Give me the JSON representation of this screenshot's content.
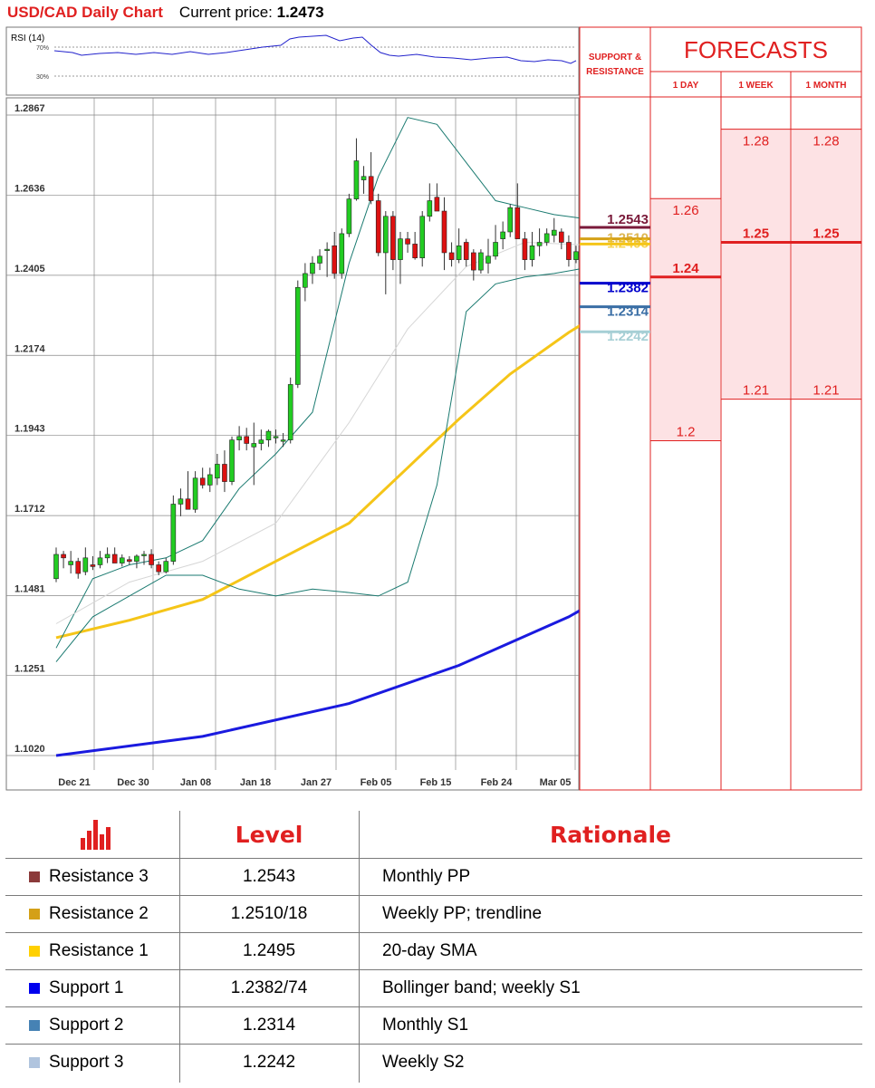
{
  "header": {
    "title": "USD/CAD Daily Chart",
    "price_label": "Current price: ",
    "price_value": "1.2473"
  },
  "rsi": {
    "label": "RSI (14)",
    "levels": [
      "70%",
      "30%"
    ]
  },
  "chart_data": {
    "type": "candlestick",
    "title": "USD/CAD Daily Chart",
    "y_ticks": [
      "1.2867",
      "1.2636",
      "1.2405",
      "1.2174",
      "1.1943",
      "1.1712",
      "1.1481",
      "1.1251",
      "1.1020"
    ],
    "ylim": [
      1.102,
      1.2867
    ],
    "x_ticks": [
      "Dec 21",
      "Dec 30",
      "Jan 08",
      "Jan 18",
      "Jan 27",
      "Feb 05",
      "Feb 15",
      "Feb 24",
      "Mar 05"
    ],
    "grid": true,
    "candles": [
      [
        1.153,
        1.162,
        1.152,
        1.16
      ],
      [
        1.16,
        1.161,
        1.156,
        1.159
      ],
      [
        1.157,
        1.161,
        1.1545,
        1.158
      ],
      [
        1.158,
        1.159,
        1.153,
        1.1545
      ],
      [
        1.155,
        1.162,
        1.154,
        1.159
      ],
      [
        1.157,
        1.1595,
        1.1555,
        1.1565
      ],
      [
        1.157,
        1.161,
        1.156,
        1.159
      ],
      [
        1.159,
        1.162,
        1.1575,
        1.16
      ],
      [
        1.16,
        1.162,
        1.158,
        1.1575
      ],
      [
        1.1575,
        1.16,
        1.1565,
        1.159
      ],
      [
        1.1585,
        1.1595,
        1.157,
        1.158
      ],
      [
        1.158,
        1.16,
        1.156,
        1.1595
      ],
      [
        1.16,
        1.161,
        1.157,
        1.16
      ],
      [
        1.16,
        1.1615,
        1.156,
        1.157
      ],
      [
        1.157,
        1.158,
        1.154,
        1.155
      ],
      [
        1.155,
        1.159,
        1.1545,
        1.158
      ],
      [
        1.158,
        1.177,
        1.157,
        1.1745
      ],
      [
        1.1745,
        1.179,
        1.171,
        1.176
      ],
      [
        1.176,
        1.184,
        1.174,
        1.173
      ],
      [
        1.173,
        1.184,
        1.172,
        1.182
      ],
      [
        1.182,
        1.185,
        1.179,
        1.18
      ],
      [
        1.18,
        1.185,
        1.178,
        1.183
      ],
      [
        1.182,
        1.189,
        1.18,
        1.186
      ],
      [
        1.186,
        1.19,
        1.178,
        1.181
      ],
      [
        1.181,
        1.194,
        1.18,
        1.193
      ],
      [
        1.193,
        1.197,
        1.19,
        1.194
      ],
      [
        1.194,
        1.1965,
        1.19,
        1.192
      ],
      [
        1.191,
        1.198,
        1.18,
        1.192
      ],
      [
        1.192,
        1.196,
        1.19,
        1.193
      ],
      [
        1.193,
        1.196,
        1.191,
        1.1955
      ],
      [
        1.194,
        1.196,
        1.192,
        1.194
      ],
      [
        1.193,
        1.195,
        1.191,
        1.193
      ],
      [
        1.193,
        1.211,
        1.192,
        1.209
      ],
      [
        1.209,
        1.239,
        1.208,
        1.237
      ],
      [
        1.237,
        1.244,
        1.233,
        1.241
      ],
      [
        1.241,
        1.246,
        1.238,
        1.244
      ],
      [
        1.244,
        1.248,
        1.242,
        1.246
      ],
      [
        1.248,
        1.25,
        1.24,
        1.248
      ],
      [
        1.249,
        1.253,
        1.2395,
        1.241
      ],
      [
        1.241,
        1.254,
        1.2395,
        1.2525
      ],
      [
        1.2525,
        1.264,
        1.2515,
        1.2625
      ],
      [
        1.2625,
        1.28,
        1.262,
        1.2735
      ],
      [
        1.268,
        1.272,
        1.264,
        1.269
      ],
      [
        1.269,
        1.276,
        1.261,
        1.262
      ],
      [
        1.262,
        1.264,
        1.246,
        1.247
      ],
      [
        1.247,
        1.259,
        1.235,
        1.2575
      ],
      [
        1.2575,
        1.259,
        1.242,
        1.245
      ],
      [
        1.245,
        1.253,
        1.238,
        1.251
      ],
      [
        1.251,
        1.253,
        1.247,
        1.2495
      ],
      [
        1.2495,
        1.253,
        1.245,
        1.2455
      ],
      [
        1.2455,
        1.259,
        1.243,
        1.2575
      ],
      [
        1.2575,
        1.267,
        1.256,
        1.262
      ],
      [
        1.263,
        1.267,
        1.26,
        1.259
      ],
      [
        1.259,
        1.263,
        1.242,
        1.247
      ],
      [
        1.247,
        1.25,
        1.243,
        1.245
      ],
      [
        1.245,
        1.254,
        1.244,
        1.249
      ],
      [
        1.25,
        1.251,
        1.243,
        1.245
      ],
      [
        1.247,
        1.248,
        1.239,
        1.242
      ],
      [
        1.242,
        1.248,
        1.241,
        1.247
      ],
      [
        1.244,
        1.251,
        1.241,
        1.246
      ],
      [
        1.246,
        1.255,
        1.245,
        1.25
      ],
      [
        1.251,
        1.256,
        1.248,
        1.253
      ],
      [
        1.253,
        1.261,
        1.2515,
        1.26
      ],
      [
        1.26,
        1.267,
        1.251,
        1.251
      ],
      [
        1.251,
        1.253,
        1.242,
        1.245
      ],
      [
        1.245,
        1.253,
        1.243,
        1.249
      ],
      [
        1.249,
        1.254,
        1.246,
        1.25
      ],
      [
        1.25,
        1.254,
        1.249,
        1.2525
      ],
      [
        1.252,
        1.257,
        1.25,
        1.2535
      ],
      [
        1.253,
        1.254,
        1.248,
        1.25
      ],
      [
        1.25,
        1.252,
        1.243,
        1.245
      ],
      [
        1.245,
        1.249,
        1.244,
        1.2473
      ]
    ],
    "series": [
      {
        "key": "sma_long",
        "color": "#1a1adf",
        "points": [
          [
            0,
            1.102
          ],
          [
            20,
            1.1075
          ],
          [
            40,
            1.117
          ],
          [
            55,
            1.128
          ],
          [
            70,
            1.142
          ],
          [
            75,
            1.148
          ]
        ]
      },
      {
        "key": "sma_mid",
        "color": "#f5c518",
        "points": [
          [
            0,
            1.136
          ],
          [
            10,
            1.141
          ],
          [
            20,
            1.147
          ],
          [
            30,
            1.158
          ],
          [
            40,
            1.169
          ],
          [
            48,
            1.185
          ],
          [
            55,
            1.199
          ],
          [
            62,
            1.212
          ],
          [
            70,
            1.224
          ],
          [
            75,
            1.2305
          ]
        ]
      },
      {
        "key": "bb_upper",
        "color": "#1a7a70",
        "points": [
          [
            0,
            1.133
          ],
          [
            5,
            1.153
          ],
          [
            10,
            1.157
          ],
          [
            15,
            1.159
          ],
          [
            20,
            1.164
          ],
          [
            25,
            1.179
          ],
          [
            30,
            1.189
          ],
          [
            35,
            1.201
          ],
          [
            40,
            1.244
          ],
          [
            44,
            1.269
          ],
          [
            48,
            1.286
          ],
          [
            52,
            1.284
          ],
          [
            56,
            1.273
          ],
          [
            60,
            1.262
          ],
          [
            64,
            1.26
          ],
          [
            68,
            1.258
          ],
          [
            75,
            1.256
          ]
        ]
      },
      {
        "key": "bb_lower",
        "color": "#1a7a70",
        "points": [
          [
            0,
            1.129
          ],
          [
            5,
            1.142
          ],
          [
            10,
            1.148
          ],
          [
            15,
            1.154
          ],
          [
            20,
            1.154
          ],
          [
            25,
            1.15
          ],
          [
            30,
            1.148
          ],
          [
            35,
            1.15
          ],
          [
            40,
            1.149
          ],
          [
            44,
            1.148
          ],
          [
            48,
            1.152
          ],
          [
            52,
            1.18
          ],
          [
            56,
            1.23
          ],
          [
            60,
            1.238
          ],
          [
            64,
            1.24
          ],
          [
            68,
            1.241
          ],
          [
            72,
            1.2425
          ],
          [
            75,
            1.24
          ]
        ]
      },
      {
        "key": "bb_mid",
        "color": "#d6d6d6",
        "points": [
          [
            0,
            1.14
          ],
          [
            10,
            1.152
          ],
          [
            20,
            1.158
          ],
          [
            30,
            1.169
          ],
          [
            40,
            1.198
          ],
          [
            48,
            1.225
          ],
          [
            56,
            1.243
          ],
          [
            64,
            1.25
          ],
          [
            75,
            1.249
          ]
        ]
      }
    ],
    "levels": [
      {
        "label": "1.2543",
        "value": 1.2543,
        "color": "#7a1a3a"
      },
      {
        "label": "1.2510",
        "value": 1.251,
        "color": "#d4a017"
      },
      {
        "label": "1.2495",
        "value": 1.2495,
        "color": "#f5c518"
      },
      {
        "label": "1.2382",
        "value": 1.2382,
        "color": "#0000cc"
      },
      {
        "label": "1.2314",
        "value": 1.2314,
        "color": "#3a6ea5"
      },
      {
        "label": "1.2242",
        "value": 1.2242,
        "color": "#a6cfd5"
      }
    ],
    "forecasts": {
      "title": "FORECASTS",
      "sr_label_1": "SUPPORT &",
      "sr_label_2": "RESISTANCE",
      "columns": [
        {
          "label": "1 DAY",
          "high": "1.26",
          "mid": "1.24",
          "low": "1.2",
          "high_v": 1.26,
          "mid_v": 1.24,
          "low_v": 1.198
        },
        {
          "label": "1 WEEK",
          "high": "1.28",
          "mid": "1.25",
          "low": "1.21",
          "high_v": 1.28,
          "mid_v": 1.25,
          "low_v": 1.21
        },
        {
          "label": "1 MONTH",
          "high": "1.28",
          "mid": "1.25",
          "low": "1.21",
          "high_v": 1.28,
          "mid_v": 1.25,
          "low_v": 1.21
        }
      ]
    }
  },
  "table": {
    "headers": [
      "Level",
      "Rationale"
    ],
    "rows": [
      {
        "name": "Resistance 3",
        "level": "1.2543",
        "rationale": "Monthly PP",
        "color": "#8b3a3a"
      },
      {
        "name": "Resistance 2",
        "level": "1.2510/18",
        "rationale": "Weekly PP; trendline",
        "color": "#d4a017"
      },
      {
        "name": "Resistance 1",
        "level": "1.2495",
        "rationale": "20-day SMA",
        "color": "#ffd000"
      },
      {
        "name": "Support 1",
        "level": "1.2382/74",
        "rationale": "Bollinger band; weekly S1",
        "color": "#0000ee"
      },
      {
        "name": "Support 2",
        "level": "1.2314",
        "rationale": "Monthly S1",
        "color": "#4682b4"
      },
      {
        "name": "Support 3",
        "level": "1.2242",
        "rationale": "Weekly S2",
        "color": "#b0c4de"
      }
    ]
  }
}
